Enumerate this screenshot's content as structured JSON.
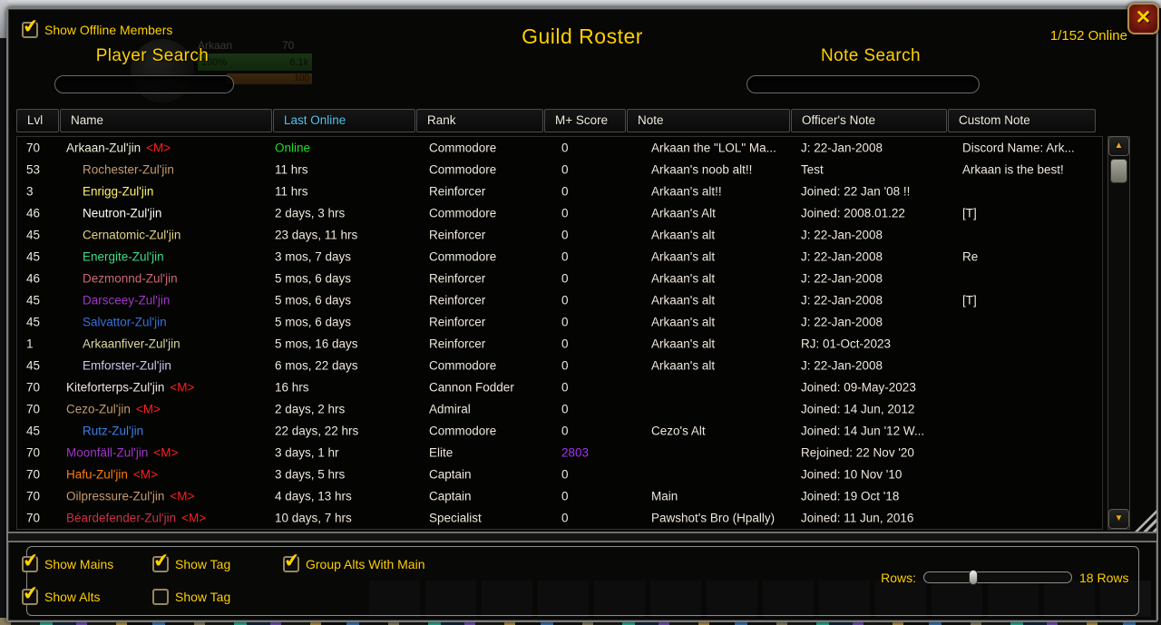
{
  "window": {
    "title": "Guild Roster",
    "online_count": "1/152 Online",
    "close_icon": "✕",
    "show_offline": {
      "label": "Show Offline Members",
      "checked": true
    },
    "player_search_label": "Player Search",
    "note_search_label": "Note Search",
    "player_search_value": "",
    "note_search_value": ""
  },
  "background_unitframe": {
    "target_name": "Arkaan",
    "target_level": "70",
    "health_pct": "100%",
    "health_value": "6.1k",
    "power_value": "100"
  },
  "colors": {
    "gold": "#FFD100",
    "sorted_header": "#58C5EC",
    "online_green": "#1EE11E",
    "main_tag_red": "#FF2020",
    "score_purple": "#A335EE",
    "row_text": "#EFE9DC"
  },
  "table": {
    "columns": [
      {
        "id": "lvl",
        "label": "Lvl",
        "sorted": false
      },
      {
        "id": "name",
        "label": "Name",
        "sorted": false
      },
      {
        "id": "last_online",
        "label": "Last Online",
        "sorted": true
      },
      {
        "id": "rank",
        "label": "Rank",
        "sorted": false
      },
      {
        "id": "score",
        "label": "M+ Score",
        "sorted": false
      },
      {
        "id": "note",
        "label": "Note",
        "sorted": false
      },
      {
        "id": "officer_note",
        "label": "Officer's Note",
        "sorted": false
      },
      {
        "id": "custom_note",
        "label": "Custom Note",
        "sorted": false
      }
    ],
    "rows": [
      {
        "lvl": "70",
        "name": "Arkaan-Zul'jin",
        "tag": "<M>",
        "name_color": "#EDEFD8",
        "alt": false,
        "last_online": "Online",
        "online": true,
        "rank": "Commodore",
        "score": "0",
        "score_color": "",
        "note": "Arkaan the \"LOL\" Ma...",
        "officer_note": "J: 22-Jan-2008",
        "custom_note": "Discord Name: Ark..."
      },
      {
        "lvl": "53",
        "name": "Rochester-Zul'jin",
        "tag": "",
        "name_color": "#C79C6E",
        "alt": true,
        "last_online": "11 hrs",
        "online": false,
        "rank": "Commodore",
        "score": "0",
        "score_color": "",
        "note": "Arkaan's noob alt!!",
        "officer_note": "Test",
        "custom_note": "Arkaan is the best!"
      },
      {
        "lvl": "3",
        "name": "Enrigg-Zul'jin",
        "tag": "",
        "name_color": "#FFF569",
        "alt": true,
        "last_online": "11 hrs",
        "online": false,
        "rank": "Reinforcer",
        "score": "0",
        "score_color": "",
        "note": "Arkaan's alt!!",
        "officer_note": "Joined: 22 Jan '08 !!",
        "custom_note": ""
      },
      {
        "lvl": "46",
        "name": "Neutron-Zul'jin",
        "tag": "",
        "name_color": "#FFFFFF",
        "alt": true,
        "last_online": "2 days, 3 hrs",
        "online": false,
        "rank": "Commodore",
        "score": "0",
        "score_color": "",
        "note": "Arkaan's Alt",
        "officer_note": "Joined: 2008.01.22",
        "custom_note": "[T]"
      },
      {
        "lvl": "45",
        "name": "Cernatomic-Zul'jin",
        "tag": "",
        "name_color": "#E3D285",
        "alt": true,
        "last_online": "23 days, 11 hrs",
        "online": false,
        "rank": "Reinforcer",
        "score": "0",
        "score_color": "",
        "note": "Arkaan's alt",
        "officer_note": "J: 22-Jan-2008",
        "custom_note": ""
      },
      {
        "lvl": "45",
        "name": "Energite-Zul'jin",
        "tag": "",
        "name_color": "#41DC8A",
        "alt": true,
        "last_online": "3 mos, 7 days",
        "online": false,
        "rank": "Commodore",
        "score": "0",
        "score_color": "",
        "note": "Arkaan's alt",
        "officer_note": "J: 22-Jan-2008",
        "custom_note": "Re"
      },
      {
        "lvl": "46",
        "name": "Dezmonnd-Zul'jin",
        "tag": "",
        "name_color": "#D06A78",
        "alt": true,
        "last_online": "5 mos, 6 days",
        "online": false,
        "rank": "Reinforcer",
        "score": "0",
        "score_color": "",
        "note": "Arkaan's alt",
        "officer_note": "J: 22-Jan-2008",
        "custom_note": ""
      },
      {
        "lvl": "45",
        "name": "Darsceey-Zul'jin",
        "tag": "",
        "name_color": "#A238C9",
        "alt": true,
        "last_online": "5 mos, 6 days",
        "online": false,
        "rank": "Reinforcer",
        "score": "0",
        "score_color": "",
        "note": "Arkaan's alt",
        "officer_note": "J: 22-Jan-2008",
        "custom_note": "[T]"
      },
      {
        "lvl": "45",
        "name": "Salvattor-Zul'jin",
        "tag": "",
        "name_color": "#3672D8",
        "alt": true,
        "last_online": "5 mos, 6 days",
        "online": false,
        "rank": "Reinforcer",
        "score": "0",
        "score_color": "",
        "note": "Arkaan's alt",
        "officer_note": "J: 22-Jan-2008",
        "custom_note": ""
      },
      {
        "lvl": "1",
        "name": "Arkaanfiver-Zul'jin",
        "tag": "",
        "name_color": "#D9D9A0",
        "alt": true,
        "last_online": "5 mos, 16 days",
        "online": false,
        "rank": "Reinforcer",
        "score": "0",
        "score_color": "",
        "note": "Arkaan's alt",
        "officer_note": "RJ: 01-Oct-2023",
        "custom_note": ""
      },
      {
        "lvl": "45",
        "name": "Emforster-Zul'jin",
        "tag": "",
        "name_color": "#CBC9EC",
        "alt": true,
        "last_online": "6 mos, 22 days",
        "online": false,
        "rank": "Commodore",
        "score": "0",
        "score_color": "",
        "note": "Arkaan's alt",
        "officer_note": "J: 22-Jan-2008",
        "custom_note": ""
      },
      {
        "lvl": "70",
        "name": "Kiteforterps-Zul'jin",
        "tag": "<M>",
        "name_color": "#F0E6E2",
        "alt": false,
        "last_online": "16 hrs",
        "online": false,
        "rank": "Cannon Fodder",
        "score": "0",
        "score_color": "",
        "note": "",
        "officer_note": "Joined: 09-May-2023",
        "custom_note": ""
      },
      {
        "lvl": "70",
        "name": "Cezo-Zul'jin",
        "tag": "<M>",
        "name_color": "#C79C6E",
        "alt": false,
        "last_online": "2 days, 2 hrs",
        "online": false,
        "rank": "Admiral",
        "score": "0",
        "score_color": "",
        "note": "",
        "officer_note": "Joined: 14 Jun, 2012",
        "custom_note": ""
      },
      {
        "lvl": "45",
        "name": "Rutz-Zul'jin",
        "tag": "",
        "name_color": "#3B82E2",
        "alt": true,
        "last_online": "22 days, 22 hrs",
        "online": false,
        "rank": "Commodore",
        "score": "0",
        "score_color": "",
        "note": "Cezo's Alt",
        "officer_note": "Joined:  14 Jun '12 W...",
        "custom_note": ""
      },
      {
        "lvl": "70",
        "name": "Moonfäll-Zul'jin",
        "tag": "<M>",
        "name_color": "#A335C9",
        "alt": false,
        "last_online": "3 days, 1 hr",
        "online": false,
        "rank": "Elite",
        "score": "2803",
        "score_color": "#A335EE",
        "note": "",
        "officer_note": "Rejoined: 22 Nov '20",
        "custom_note": ""
      },
      {
        "lvl": "70",
        "name": "Hafu-Zul'jin",
        "tag": "<M>",
        "name_color": "#FF7D0A",
        "alt": false,
        "last_online": "3 days, 5 hrs",
        "online": false,
        "rank": "Captain",
        "score": "0",
        "score_color": "",
        "note": "",
        "officer_note": "Joined: 10 Nov '10",
        "custom_note": ""
      },
      {
        "lvl": "70",
        "name": "Oilpressure-Zul'jin",
        "tag": "<M>",
        "name_color": "#C79C6E",
        "alt": false,
        "last_online": "4 days, 13 hrs",
        "online": false,
        "rank": "Captain",
        "score": "0",
        "score_color": "",
        "note": "Main",
        "officer_note": "Joined: 19 Oct '18",
        "custom_note": ""
      },
      {
        "lvl": "70",
        "name": "Béardefender-Zul'jin",
        "tag": "<M>",
        "name_color": "#CE3048",
        "alt": false,
        "last_online": "10 days, 7 hrs",
        "online": false,
        "rank": "Specialist",
        "score": "0",
        "score_color": "",
        "note": "Pawshot's Bro (Hpally)",
        "officer_note": "Joined: 11 Jun, 2016",
        "custom_note": ""
      }
    ]
  },
  "footer": {
    "checkboxes": [
      {
        "label": "Show Mains",
        "checked": true
      },
      {
        "label": "Show Tag",
        "checked": true
      },
      {
        "label": "Group Alts With Main",
        "checked": true
      },
      {
        "label": "Show Alts",
        "checked": true
      },
      {
        "label": "Show Tag",
        "checked": false
      }
    ],
    "rows_label": "Rows:",
    "rows_value": "18 Rows",
    "slider_pct": 30
  }
}
